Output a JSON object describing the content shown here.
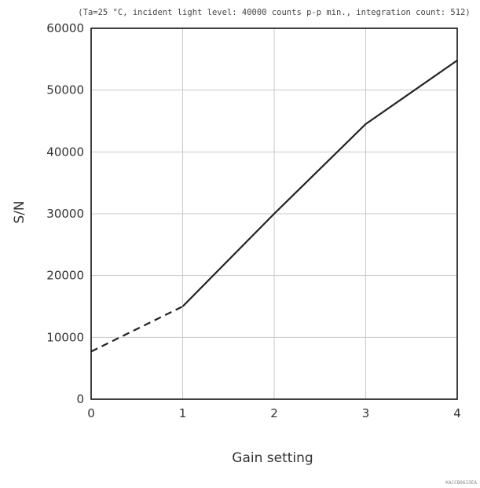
{
  "chart_data": {
    "type": "line",
    "title": "(Ta=25 °C, incident light level: 40000 counts p-p min., integration count: 512)",
    "xlabel": "Gain setting",
    "ylabel": "S/N",
    "xlim": [
      0,
      4
    ],
    "ylim": [
      0,
      60000
    ],
    "xticks": [
      0,
      1,
      2,
      3,
      4
    ],
    "yticks": [
      0,
      10000,
      20000,
      30000,
      40000,
      50000,
      60000
    ],
    "xtick_labels": [
      "0",
      "1",
      "2",
      "3",
      "4"
    ],
    "ytick_labels": [
      "0",
      "10000",
      "20000",
      "30000",
      "40000",
      "50000",
      "60000"
    ],
    "grid": true,
    "legend": "none",
    "series": [
      {
        "style": "dashed",
        "x": [
          0,
          1
        ],
        "y": [
          7700,
          15000
        ]
      },
      {
        "style": "solid",
        "x": [
          1,
          2,
          3,
          4
        ],
        "y": [
          15000,
          30000,
          44500,
          54800
        ]
      }
    ],
    "colors": {
      "line": "#222222",
      "grid": "#c8c8c8",
      "frame": "#111111"
    }
  },
  "footer": {
    "code": "KACCB0633EA"
  }
}
